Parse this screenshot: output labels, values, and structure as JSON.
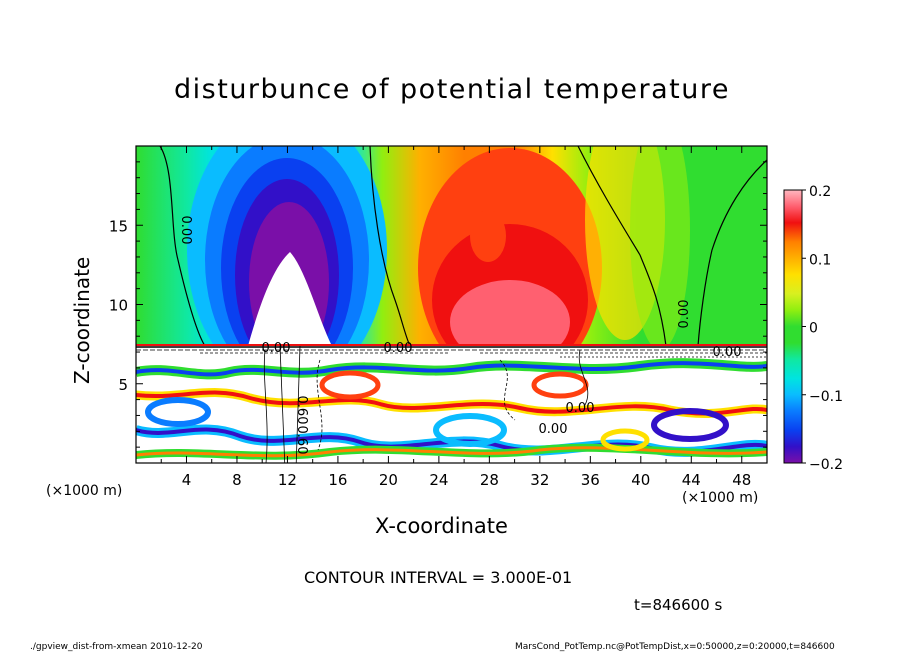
{
  "chart_data": {
    "type": "heatmap",
    "title": "disturbunce of potential temperature",
    "xlabel": "X-coordinate",
    "ylabel": "Z-coordinate",
    "x_unit_label": "(×1000 m)",
    "xlim": [
      0,
      50
    ],
    "ylim": [
      0,
      20
    ],
    "x_ticks": [
      "4",
      "8",
      "12",
      "16",
      "20",
      "24",
      "28",
      "32",
      "36",
      "40",
      "44",
      "48"
    ],
    "y_ticks": [
      "5",
      "10",
      "15"
    ],
    "colorbar": {
      "range": [
        -0.2,
        0.2
      ],
      "ticks": [
        "0.2",
        "0.1",
        "0",
        "−0.1",
        "−0.2"
      ]
    },
    "contour_labels": [
      "0.00",
      "0.00",
      "0.00",
      "0.00",
      "0.00",
      "0.60",
      "0.60",
      "0.00",
      "0.00"
    ],
    "contour_interval": "CONTOUR INTERVAL = 3.000E-01",
    "time_label": "t=846600 s"
  },
  "footer": {
    "left": "./gpview_dist-from-xmean   2010-12-20",
    "right": "MarsCond_PotTemp.nc@PotTempDist,x=0:50000,z=0:20000,t=846600"
  },
  "colors": {
    "palette": [
      "#7a0fa8",
      "#3210c8",
      "#0a40f0",
      "#0a7cff",
      "#0abcff",
      "#00e4e0",
      "#10e8a0",
      "#30dd30",
      "#90ef10",
      "#d8f020",
      "#ffe000",
      "#ffb000",
      "#ff8000",
      "#ff4010",
      "#f01010",
      "#ff6070",
      "#ffb8c0"
    ]
  }
}
